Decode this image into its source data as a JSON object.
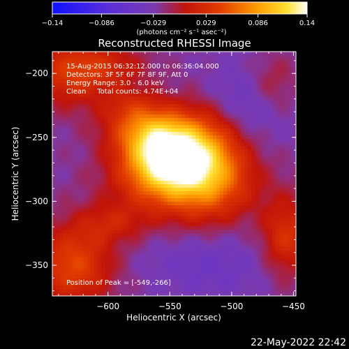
{
  "chart_data": {
    "type": "heatmap",
    "title": "Reconstructed RHESSI Image",
    "xlabel": "Heliocentric X (arcsec)",
    "ylabel": "Heliocentric Y (arcsec)",
    "xlim": [
      -645,
      -448
    ],
    "ylim": [
      -374,
      -183
    ],
    "x_ticks": [
      -600,
      -550,
      -500,
      -450
    ],
    "x_tick_labels": [
      "−600",
      "−550",
      "−500",
      "−450"
    ],
    "y_ticks": [
      -200,
      -250,
      -300,
      -350
    ],
    "y_tick_labels": [
      "−200",
      "−250",
      "−300",
      "−350"
    ],
    "colorbar": {
      "range": [
        -0.14,
        0.14
      ],
      "ticks": [
        -0.14,
        -0.086,
        -0.029,
        0.029,
        0.086,
        0.14
      ],
      "tick_labels": [
        "−0.14",
        "−0.086",
        "−0.029",
        "0.029",
        "0.086",
        "0.14"
      ],
      "unit_label": "(photons cm⁻² s⁻¹ asec⁻²)",
      "colormap": "blue-purple-red-orange-yellow-white"
    },
    "annotations": [
      "15-Aug-2015 06:32:12.000 to 06:36:04.000",
      "Detectors: 3F 5F 6F 7F 8F 9F, Att 0",
      "Energy Range: 3.0 - 6.0 keV",
      "Clean     Total counts: 4.74E+04",
      "Position of Peak = [-549,-266]"
    ],
    "peak": {
      "x": -549,
      "y": -266
    }
  },
  "footer": {
    "timestamp": "22-May-2022 22:42"
  }
}
